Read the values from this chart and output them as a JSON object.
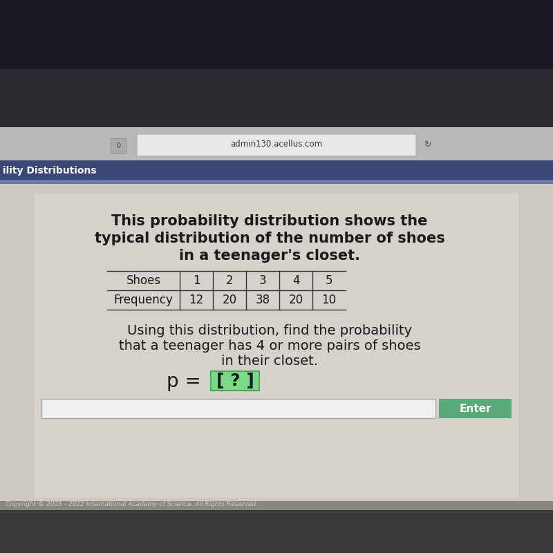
{
  "bg_outer": "#1a1a1a",
  "bg_dark_top": "#2a2a35",
  "bg_browser_bar": "#c0c0c0",
  "bg_nav": "#3a4a7a",
  "bg_content": "#d8d4ce",
  "bg_footer": "#555555",
  "url": "admin130.acellus.com",
  "nav_label": "ility Distributions",
  "title_line1": "This probability distribution shows the",
  "title_line2": "typical distribution of the number of shoes",
  "title_line3": "in a teenager's closet.",
  "table_headers": [
    "Shoes",
    "1",
    "2",
    "3",
    "4",
    "5"
  ],
  "table_row2": [
    "Frequency",
    "12",
    "20",
    "38",
    "20",
    "10"
  ],
  "question_line1": "Using this distribution, find the probability",
  "question_line2": "that a teenager has 4 or more pairs of shoes",
  "question_line3": "in their closet.",
  "p_text": "p = ",
  "bracket_text": "[ ? ]",
  "enter_label": "Enter",
  "enter_bg": "#5aaa7a",
  "copyright": "Copyright © 2003 - 2022 International Academy of Science. All Rights Reserved.",
  "title_fontsize": 15,
  "question_fontsize": 14,
  "table_fontsize": 12,
  "p_fontsize": 20
}
